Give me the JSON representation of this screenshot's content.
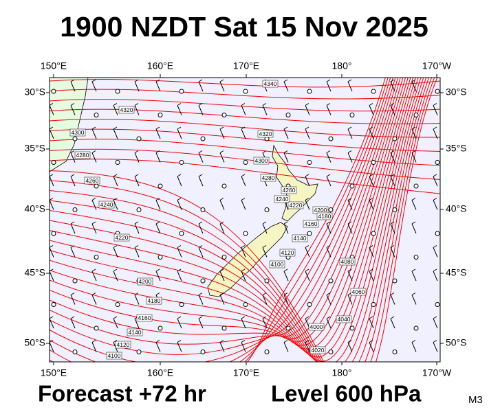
{
  "header": {
    "title": "1900 NZDT Sat 15 Nov 2025"
  },
  "axes": {
    "longitudes": [
      "150°E",
      "160°E",
      "170°E",
      "180°",
      "170°W"
    ],
    "latitudes": [
      "30°S",
      "35°S",
      "40°S",
      "45°S",
      "50°S"
    ]
  },
  "contour_labels": [
    4340,
    4320,
    4300,
    4280,
    4260,
    4240,
    4220,
    4200,
    4180,
    4160,
    4140,
    4120,
    4100,
    4320,
    4300,
    4280,
    4260,
    4240,
    4220,
    4200,
    4180,
    4160,
    4140,
    4120,
    4100,
    4080,
    4060,
    4040,
    4020,
    4000
  ],
  "footer": {
    "forecast": "Forecast +72 hr",
    "level": "Level 600 hPa",
    "code": "M3"
  }
}
